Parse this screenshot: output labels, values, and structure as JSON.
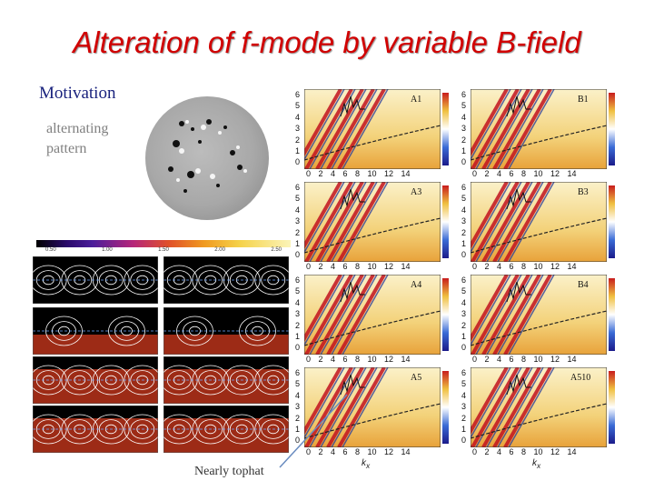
{
  "slide": {
    "title": "Alteration of f-mode by variable B-field",
    "motivation": "Motivation",
    "alternating_line1": "alternating",
    "alternating_line2": "pattern",
    "nearly_tophat": "Nearly tophat"
  },
  "panels": {
    "labels": [
      "A1",
      "B1",
      "A3",
      "B3",
      "A4",
      "B4",
      "A5",
      "A510"
    ],
    "x_ticks": "0  2  4  6  8  10  12  14",
    "y_ticks": [
      "6",
      "5",
      "4",
      "3",
      "2",
      "1",
      "0"
    ],
    "x_axis_label": "k",
    "x_axis_label_sub": "x"
  },
  "colorbar": {
    "ticks": [
      "0.50",
      "1.00",
      "1.50",
      "2.00",
      "2.50"
    ]
  },
  "colors": {
    "title": "#d10000",
    "motivation": "#1a237e",
    "caption": "#808080"
  }
}
